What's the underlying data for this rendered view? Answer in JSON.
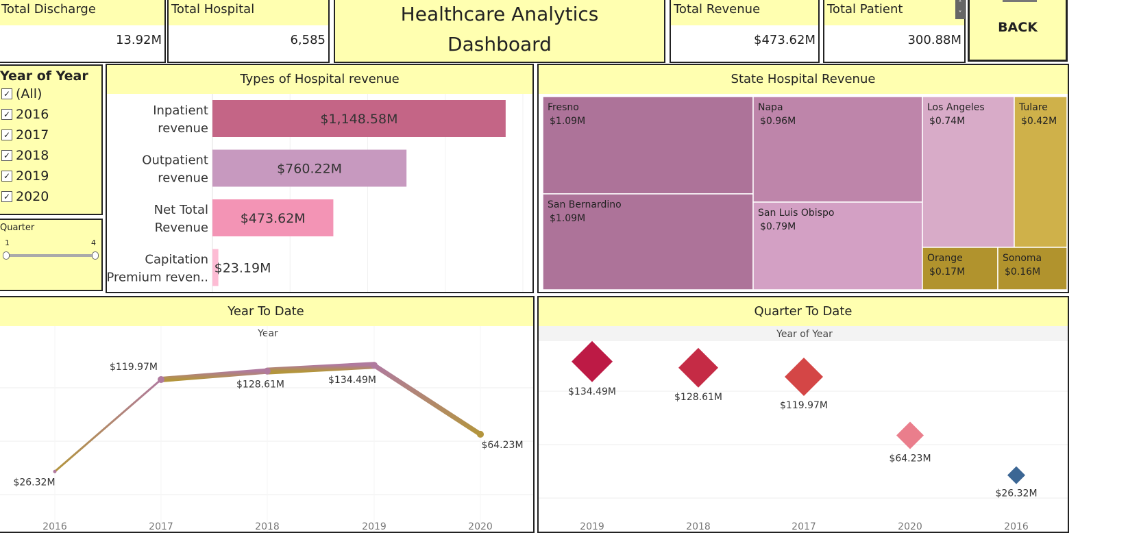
{
  "kpis": {
    "discharge": {
      "label": "Total Discharge",
      "value": "13.92M"
    },
    "hospital": {
      "label": "Total Hospital",
      "value": "6,585"
    },
    "revenue": {
      "label": "Total Revenue",
      "value": "$473.62M"
    },
    "patient": {
      "label": "Total Patient",
      "value": "300.88M"
    }
  },
  "dashboard": {
    "title_line1": "Healthcare Analytics",
    "title_line2": "Dashboard"
  },
  "back_button": {
    "label": "BACK"
  },
  "scroll_control": {
    "up": "˄",
    "down": "˅"
  },
  "filters": {
    "year": {
      "title": "Year of Year",
      "items": [
        {
          "label": "(All)",
          "checked": true
        },
        {
          "label": "2016",
          "checked": true
        },
        {
          "label": "2017",
          "checked": true
        },
        {
          "label": "2018",
          "checked": true
        },
        {
          "label": "2019",
          "checked": true
        },
        {
          "label": "2020",
          "checked": true
        }
      ]
    },
    "quarter": {
      "title": "Quarter",
      "min_label": "1",
      "max_label": "4",
      "range": [
        1,
        4
      ]
    }
  },
  "sections": {
    "types": "Types of Hospital revenue",
    "state": "State Hospital Revenue",
    "ytd": "Year To Date",
    "qtd": "Quarter To Date"
  },
  "chart_data": [
    {
      "type": "bar",
      "title": "Types of Hospital revenue",
      "orientation": "horizontal",
      "categories": [
        [
          "Inpatient",
          "revenue"
        ],
        [
          "Outpatient",
          "revenue"
        ],
        [
          "Net Total",
          "Revenue"
        ],
        [
          "Capitation",
          "Premium reven.."
        ]
      ],
      "values": [
        1148.58,
        760.22,
        473.62,
        23.19
      ],
      "value_labels": [
        "$1,148.58M",
        "$760.22M",
        "$473.62M",
        "$23.19M"
      ],
      "colors": [
        "#c46586",
        "#c799bf",
        "#f394b5",
        "#fdbcd4"
      ],
      "xlim": [
        0,
        1200
      ]
    },
    {
      "type": "treemap",
      "title": "State Hospital Revenue",
      "items": [
        {
          "name": "Fresno",
          "label": "$1.09M",
          "value": 1.09,
          "color": "#ad7399"
        },
        {
          "name": "San Bernardino",
          "label": "$1.09M",
          "value": 1.09,
          "color": "#ad7399"
        },
        {
          "name": "Napa",
          "label": "$0.96M",
          "value": 0.96,
          "color": "#be85aa"
        },
        {
          "name": "San Luis Obispo",
          "label": "$0.79M",
          "value": 0.79,
          "color": "#d3a0c4"
        },
        {
          "name": "Los Angeles",
          "label": "$0.74M",
          "value": 0.74,
          "color": "#d8abc8"
        },
        {
          "name": "Tulare",
          "label": "$0.42M",
          "value": 0.42,
          "color": "#cfb14a"
        },
        {
          "name": "Orange",
          "label": "$0.17M",
          "value": 0.17,
          "color": "#b1932d"
        },
        {
          "name": "Sonoma",
          "label": "$0.16M",
          "value": 0.16,
          "color": "#b1932d"
        }
      ]
    },
    {
      "type": "line",
      "title": "Year To Date",
      "xlabel": "Year",
      "x": [
        "2016",
        "2017",
        "2018",
        "2019",
        "2020"
      ],
      "values": [
        26.32,
        119.97,
        128.61,
        134.49,
        64.23
      ],
      "value_labels": [
        "$26.32M",
        "$119.97M",
        "$128.61M",
        "$134.49M",
        "$64.23M"
      ],
      "ylim": [
        0,
        150
      ],
      "grid": true,
      "colors": {
        "low": "#b3953d",
        "high": "#b07a9e"
      }
    },
    {
      "type": "scatter",
      "title": "Quarter To Date",
      "xlabel": "Year of Year",
      "x": [
        "2019",
        "2018",
        "2017",
        "2020",
        "2016"
      ],
      "values": [
        134.49,
        128.61,
        119.97,
        64.23,
        26.32
      ],
      "value_labels": [
        "$134.49M",
        "$128.61M",
        "$119.97M",
        "$64.23M",
        "$26.32M"
      ],
      "colors": [
        "#bd1a45",
        "#c52b45",
        "#d44646",
        "#ea7e8c",
        "#3b6694"
      ],
      "marker": "diamond",
      "ylim": [
        0,
        150
      ],
      "grid": true
    }
  ]
}
